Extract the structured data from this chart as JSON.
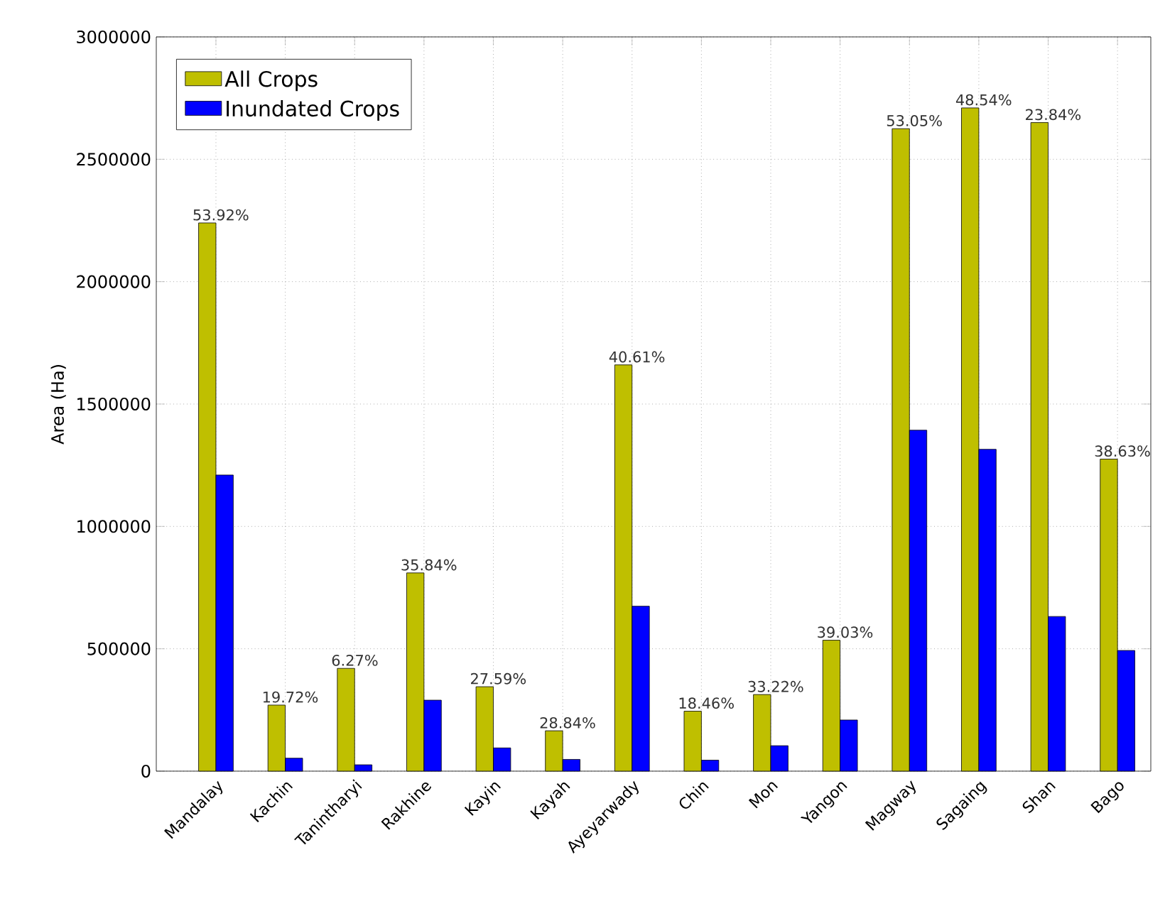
{
  "chart_data": {
    "type": "bar",
    "ylabel": "Area (Ha)",
    "categories": [
      "Mandalay",
      "Kachin",
      "Tanintharyi",
      "Rakhine",
      "Kayin",
      "Kayah",
      "Ayeyarwady",
      "Chin",
      "Mon",
      "Yangon",
      "Magway",
      "Sagaing",
      "Shan",
      "Bago"
    ],
    "series": [
      {
        "name": "All Crops",
        "color": "#bfbf00",
        "values": [
          2240000,
          270000,
          420000,
          810000,
          345000,
          165000,
          1660000,
          245000,
          313000,
          535000,
          2625000,
          2710000,
          2650000,
          1275000
        ]
      },
      {
        "name": "Inundated Crops",
        "color": "#0000ff",
        "values": [
          1210000,
          53000,
          26000,
          290000,
          95000,
          48000,
          674000,
          45000,
          104000,
          209000,
          1393000,
          1315000,
          632000,
          493000
        ]
      }
    ],
    "annotations": [
      {
        "text": "53.92%",
        "x": "Mandalay",
        "y": 2240000
      },
      {
        "text": "19.72%",
        "x": "Kachin",
        "y": 270000
      },
      {
        "text": "6.27%",
        "x": "Tanintharyi",
        "y": 420000
      },
      {
        "text": "35.84%",
        "x": "Rakhine",
        "y": 810000
      },
      {
        "text": "27.59%",
        "x": "Kayin",
        "y": 345000
      },
      {
        "text": "28.84%",
        "x": "Kayah",
        "y": 165000
      },
      {
        "text": "40.61%",
        "x": "Ayeyarwady",
        "y": 1660000
      },
      {
        "text": "18.46%",
        "x": "Chin",
        "y": 245000
      },
      {
        "text": "33.22%",
        "x": "Mon",
        "y": 313000
      },
      {
        "text": "39.03%",
        "x": "Yangon",
        "y": 535000
      },
      {
        "text": "53.05%",
        "x": "Magway",
        "y": 2625000
      },
      {
        "text": "48.54%",
        "x": "Sagaing",
        "y": 2710000
      },
      {
        "text": "23.84%",
        "x": "Shan",
        "y": 2650000
      },
      {
        "text": "38.63%",
        "x": "Bago",
        "y": 1275000
      }
    ],
    "ylim": [
      0,
      3000000
    ],
    "yticks": [
      0,
      500000,
      1000000,
      1500000,
      2000000,
      2500000,
      3000000
    ],
    "grid": true,
    "legend": "top left"
  }
}
